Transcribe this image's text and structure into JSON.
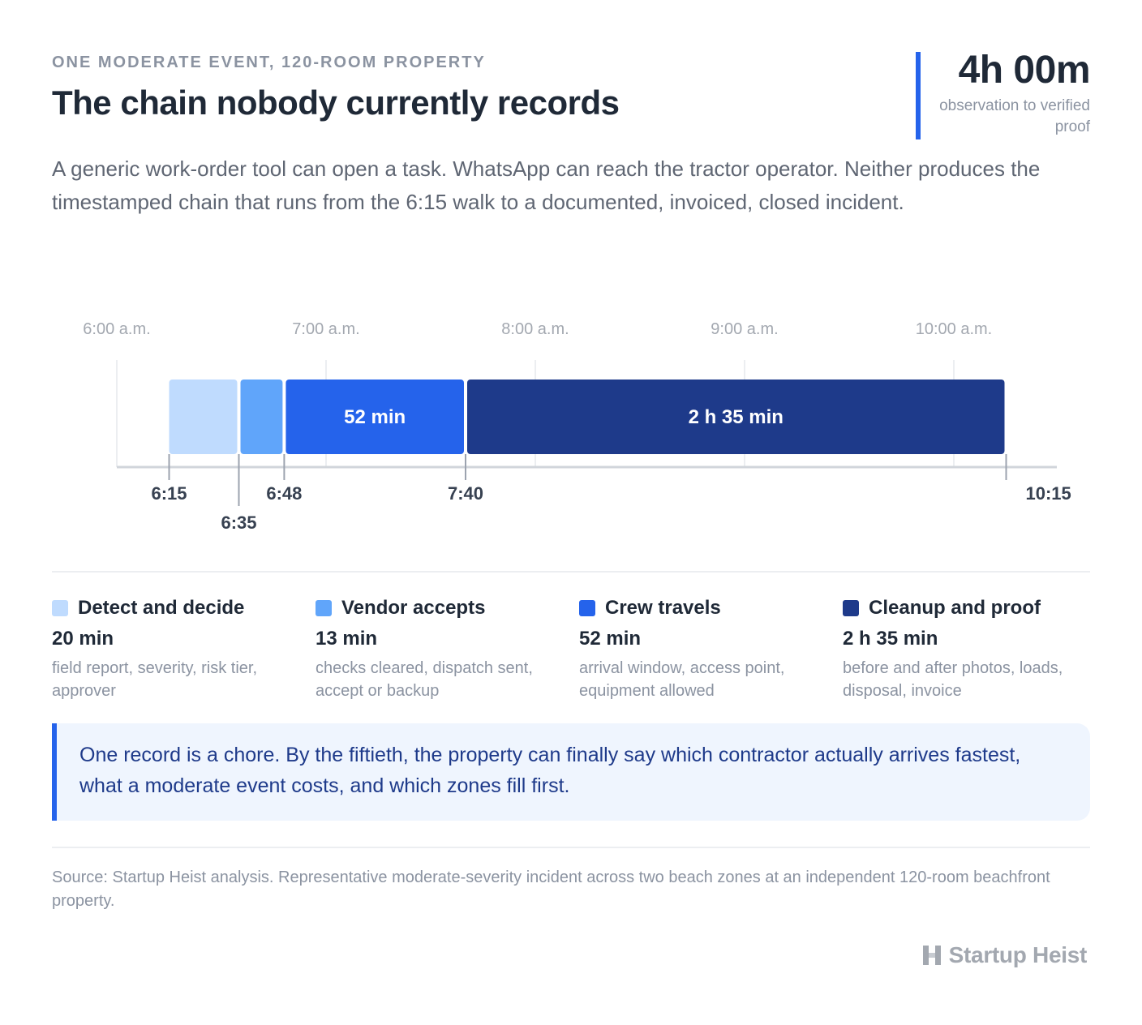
{
  "header": {
    "eyebrow": "ONE MODERATE EVENT, 120-ROOM PROPERTY",
    "title": "The chain nobody currently records",
    "lede": "A generic work-order tool can open a task. WhatsApp can reach the tractor operator. Neither produces the timestamped chain that runs from the 6:15 walk to a documented, invoiced, closed incident."
  },
  "stat": {
    "value": "4h 00m",
    "caption": "observation to verified proof"
  },
  "chart_data": {
    "type": "bar",
    "orientation": "horizontal-timeline",
    "x_unit": "clock time (a.m.)",
    "xlim": [
      "6:00",
      "10:30"
    ],
    "axis_ticks": [
      "6:00 a.m.",
      "7:00 a.m.",
      "8:00 a.m.",
      "9:00 a.m.",
      "10:00 a.m."
    ],
    "grid": true,
    "segments": [
      {
        "stage": "Detect and decide",
        "start": "6:15",
        "end": "6:35",
        "duration_min": 20,
        "label": "",
        "color": "#bfdbfe"
      },
      {
        "stage": "Vendor accepts",
        "start": "6:35",
        "end": "6:48",
        "duration_min": 13,
        "label": "",
        "color": "#60a5fa"
      },
      {
        "stage": "Crew travels",
        "start": "6:48",
        "end": "7:40",
        "duration_min": 52,
        "label": "52 min",
        "color": "#2563eb"
      },
      {
        "stage": "Cleanup and proof",
        "start": "7:40",
        "end": "10:15",
        "duration_min": 155,
        "label": "2 h 35 min",
        "color": "#1e3a8a"
      }
    ],
    "boundary_labels": [
      "6:15",
      "6:35",
      "6:48",
      "7:40",
      "10:15"
    ]
  },
  "legend": [
    {
      "name": "Detect and decide",
      "duration": "20 min",
      "desc": "field report, severity, risk tier, approver",
      "color": "#bfdbfe"
    },
    {
      "name": "Vendor accepts",
      "duration": "13 min",
      "desc": "checks cleared, dispatch sent, accept or backup",
      "color": "#60a5fa"
    },
    {
      "name": "Crew travels",
      "duration": "52 min",
      "desc": "arrival window, access point, equipment allowed",
      "color": "#2563eb"
    },
    {
      "name": "Cleanup and proof",
      "duration": "2 h 35 min",
      "desc": "before and after photos, loads, disposal, invoice",
      "color": "#1e3a8a"
    }
  ],
  "callout": "One record is a chore. By the fiftieth, the property can finally say which contractor actually arrives fastest, what a moderate event costs, and which zones fill first.",
  "source": "Source: Startup Heist analysis. Representative moderate-severity incident across two beach zones at an independent 120-room beachfront property.",
  "brand": {
    "name": "Startup Heist",
    "icon": "startup-heist-logo-icon"
  }
}
